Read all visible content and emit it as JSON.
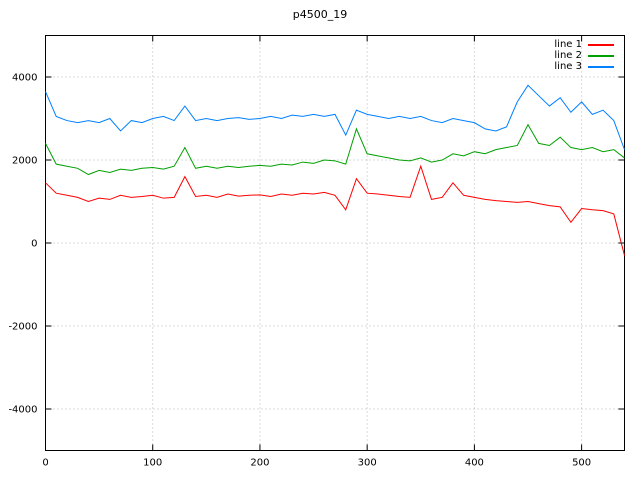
{
  "title": "p4500_19",
  "chart_data": {
    "type": "line",
    "title": "p4500_19",
    "xlabel": "",
    "ylabel": "",
    "xlim": [
      0,
      540
    ],
    "ylim": [
      -5000,
      5000
    ],
    "xticks": [
      0,
      100,
      200,
      300,
      400,
      500
    ],
    "yticks": [
      -4000,
      -2000,
      0,
      2000,
      4000
    ],
    "grid": true,
    "grid_style": "dotted",
    "legend_position": "top-right-inside",
    "background": "#ffffff",
    "border_color": "#000000",
    "x": [
      0,
      10,
      20,
      30,
      40,
      50,
      60,
      70,
      80,
      90,
      100,
      110,
      120,
      130,
      140,
      150,
      160,
      170,
      180,
      190,
      200,
      210,
      220,
      230,
      240,
      250,
      260,
      270,
      280,
      290,
      300,
      310,
      320,
      330,
      340,
      350,
      360,
      370,
      380,
      390,
      400,
      410,
      420,
      430,
      440,
      450,
      460,
      470,
      480,
      490,
      500,
      510,
      520,
      530,
      540
    ],
    "series": [
      {
        "name": "line 1",
        "color": "#ff0000",
        "values": [
          1450,
          1200,
          1150,
          1100,
          1000,
          1080,
          1050,
          1150,
          1100,
          1120,
          1150,
          1080,
          1100,
          1600,
          1120,
          1150,
          1100,
          1180,
          1130,
          1150,
          1160,
          1120,
          1180,
          1150,
          1200,
          1180,
          1220,
          1150,
          800,
          1550,
          1200,
          1180,
          1150,
          1120,
          1100,
          1850,
          1050,
          1100,
          1450,
          1150,
          1100,
          1050,
          1020,
          1000,
          980,
          1000,
          950,
          900,
          870,
          500,
          830,
          800,
          780,
          700,
          -300
        ]
      },
      {
        "name": "line 2",
        "color": "#00a000",
        "values": [
          2400,
          1900,
          1850,
          1800,
          1650,
          1750,
          1700,
          1780,
          1750,
          1800,
          1820,
          1780,
          1850,
          2300,
          1800,
          1850,
          1800,
          1850,
          1820,
          1850,
          1870,
          1850,
          1900,
          1880,
          1950,
          1920,
          2000,
          1980,
          1900,
          2750,
          2150,
          2100,
          2050,
          2000,
          1980,
          2050,
          1950,
          2000,
          2150,
          2100,
          2200,
          2150,
          2250,
          2300,
          2350,
          2850,
          2400,
          2350,
          2550,
          2300,
          2250,
          2300,
          2200,
          2250,
          2050
        ]
      },
      {
        "name": "line 3",
        "color": "#0080ff",
        "values": [
          3650,
          3050,
          2950,
          2900,
          2950,
          2900,
          3000,
          2700,
          2950,
          2900,
          3000,
          3050,
          2950,
          3300,
          2950,
          3000,
          2950,
          3000,
          3020,
          2980,
          3000,
          3050,
          3000,
          3080,
          3050,
          3100,
          3050,
          3100,
          2600,
          3200,
          3100,
          3050,
          3000,
          3050,
          3000,
          3050,
          2950,
          2900,
          3000,
          2950,
          2900,
          2750,
          2700,
          2800,
          3400,
          3800,
          3550,
          3300,
          3500,
          3150,
          3400,
          3100,
          3200,
          2950,
          2250
        ]
      }
    ]
  }
}
